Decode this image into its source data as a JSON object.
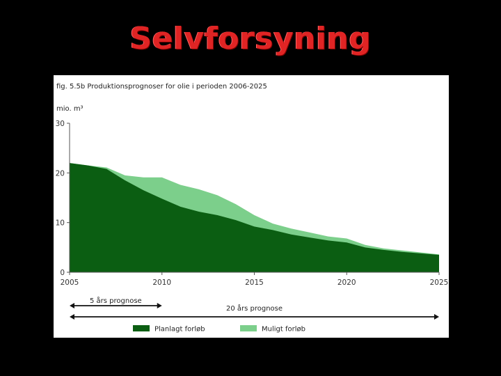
{
  "slide": {
    "title": "Selvforsyning"
  },
  "figure": {
    "caption": "fig. 5.5b Produktionsprognoser for olie i perioden 2006-2025",
    "unit": "mio. m³"
  },
  "prognosis": {
    "short_label": "5 års prognose",
    "long_label": "20 års prognose",
    "short_range": [
      2005,
      2010
    ],
    "long_range": [
      2005,
      2025
    ]
  },
  "colors": {
    "planned": "#0b5e12",
    "possible": "#7ccf8b",
    "title": "#e02424"
  },
  "chart_data": {
    "type": "area",
    "stacked": true,
    "title": "fig. 5.5b Produktionsprognoser for olie i perioden 2006-2025",
    "ylabel": "mio. m³",
    "xlabel": "",
    "xlim": [
      2005,
      2025
    ],
    "ylim": [
      0,
      30
    ],
    "xticks": [
      2005,
      2010,
      2015,
      2020,
      2025
    ],
    "yticks": [
      0,
      10,
      20,
      30
    ],
    "legend_position": "bottom",
    "x": [
      2005,
      2006,
      2007,
      2008,
      2009,
      2010,
      2011,
      2012,
      2013,
      2014,
      2015,
      2016,
      2017,
      2018,
      2019,
      2020,
      2021,
      2022,
      2023,
      2024,
      2025
    ],
    "series": [
      {
        "name": "Planlagt forløb",
        "values": [
          22,
          21.5,
          20.8,
          18.5,
          16.5,
          14.8,
          13.2,
          12.2,
          11.5,
          10.5,
          9.2,
          8.5,
          7.6,
          7.0,
          6.4,
          6.0,
          5.0,
          4.5,
          4.1,
          3.8,
          3.5
        ]
      },
      {
        "name": "Muligt forløb",
        "values": [
          0,
          0,
          0.3,
          1.0,
          2.6,
          4.3,
          4.4,
          4.5,
          4.0,
          3.2,
          2.3,
          1.3,
          1.2,
          1.0,
          0.8,
          0.8,
          0.5,
          0.3,
          0.3,
          0.2,
          0.1
        ]
      }
    ]
  }
}
